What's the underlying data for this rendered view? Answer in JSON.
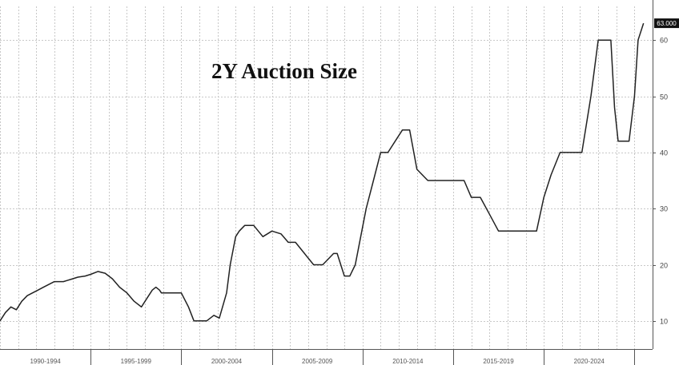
{
  "chart_data": {
    "type": "line",
    "title": "2Y Auction Size",
    "xlabel": "",
    "ylabel": "",
    "ylim": [
      5,
      66
    ],
    "xlim": [
      1990.0,
      2026.0
    ],
    "grid": true,
    "legend": "none",
    "y_ticks": [
      10,
      20,
      30,
      40,
      50,
      60
    ],
    "y_tick_labels": [
      "10",
      "20",
      "30",
      "40",
      "50",
      "60"
    ],
    "x_tick_labels": [
      "1990-1994",
      "1995-1999",
      "2000-2004",
      "2005-2009",
      "2010-2014",
      "2015-2019",
      "2020-2024"
    ],
    "last_value_label": "63.000",
    "colors": {
      "line": "#222222",
      "grid": "#c8c8c8",
      "axis": "#555555",
      "last_value_badge": "#111111"
    },
    "series": [
      {
        "x": [
          1990.0,
          1990.3,
          1990.6,
          1990.9,
          1991.2,
          1991.5,
          1991.8,
          1992.1,
          1992.4,
          1992.7,
          1993.0,
          1993.3,
          1993.5,
          1993.7,
          1994.0,
          1994.3,
          1994.7,
          1995.0,
          1995.4,
          1995.8,
          1996.2,
          1996.6,
          1997.0,
          1997.4,
          1997.8,
          1998.1,
          1998.4,
          1998.6,
          1998.8,
          1998.9,
          1999.0,
          1999.2,
          1999.4,
          1999.6,
          1999.8,
          2000.0,
          2000.4,
          2000.7,
          2001.0,
          2001.4,
          2001.8,
          2002.1,
          2002.5,
          2002.7,
          2003.0,
          2003.2,
          2003.5,
          2004.0,
          2004.5,
          2005.0,
          2005.5,
          2005.9,
          2006.3,
          2006.8,
          2007.3,
          2007.8,
          2008.1,
          2008.4,
          2008.6,
          2008.8,
          2009.0,
          2009.3,
          2009.6,
          2009.9,
          2010.2,
          2010.6,
          2011.0,
          2011.4,
          2011.8,
          2012.2,
          2012.6,
          2013.0,
          2013.6,
          2014.0,
          2014.4,
          2014.8,
          2015.2,
          2015.6,
          2016.0,
          2016.5,
          2017.0,
          2017.5,
          2018.0,
          2018.3,
          2018.6,
          2018.9,
          2019.2,
          2019.6,
          2020.0,
          2020.4,
          2020.9,
          2021.2,
          2021.5,
          2021.8,
          2022.1,
          2022.6,
          2023.0,
          2023.4,
          2023.7,
          2023.9,
          2024.1,
          2024.3,
          2024.5,
          2024.7,
          2025.0,
          2025.2,
          2025.5
        ],
        "y": [
          10,
          11.5,
          12.5,
          12,
          13.5,
          14.5,
          15,
          15.5,
          16,
          16.5,
          17,
          17,
          17,
          17.2,
          17.5,
          17.8,
          18,
          18.3,
          18.8,
          18.5,
          17.5,
          16,
          15,
          13.5,
          12.5,
          14,
          15.5,
          16,
          15.5,
          15,
          15,
          15,
          15,
          15,
          15,
          15,
          12.5,
          10,
          10,
          10,
          11,
          10.5,
          15,
          20,
          25,
          26,
          27,
          27,
          25,
          26,
          25.5,
          24,
          24,
          22,
          20,
          20,
          21,
          22,
          22,
          20,
          18,
          18,
          20,
          25,
          30,
          35,
          40,
          40,
          42,
          44,
          44,
          37,
          35,
          35,
          35,
          35,
          35,
          35,
          32,
          32,
          29,
          26,
          26,
          26,
          26,
          26,
          26,
          26,
          32,
          36,
          40,
          40,
          40,
          40,
          40,
          50,
          60,
          60,
          60,
          48,
          42,
          42,
          42,
          42,
          50,
          60,
          63
        ]
      }
    ]
  }
}
